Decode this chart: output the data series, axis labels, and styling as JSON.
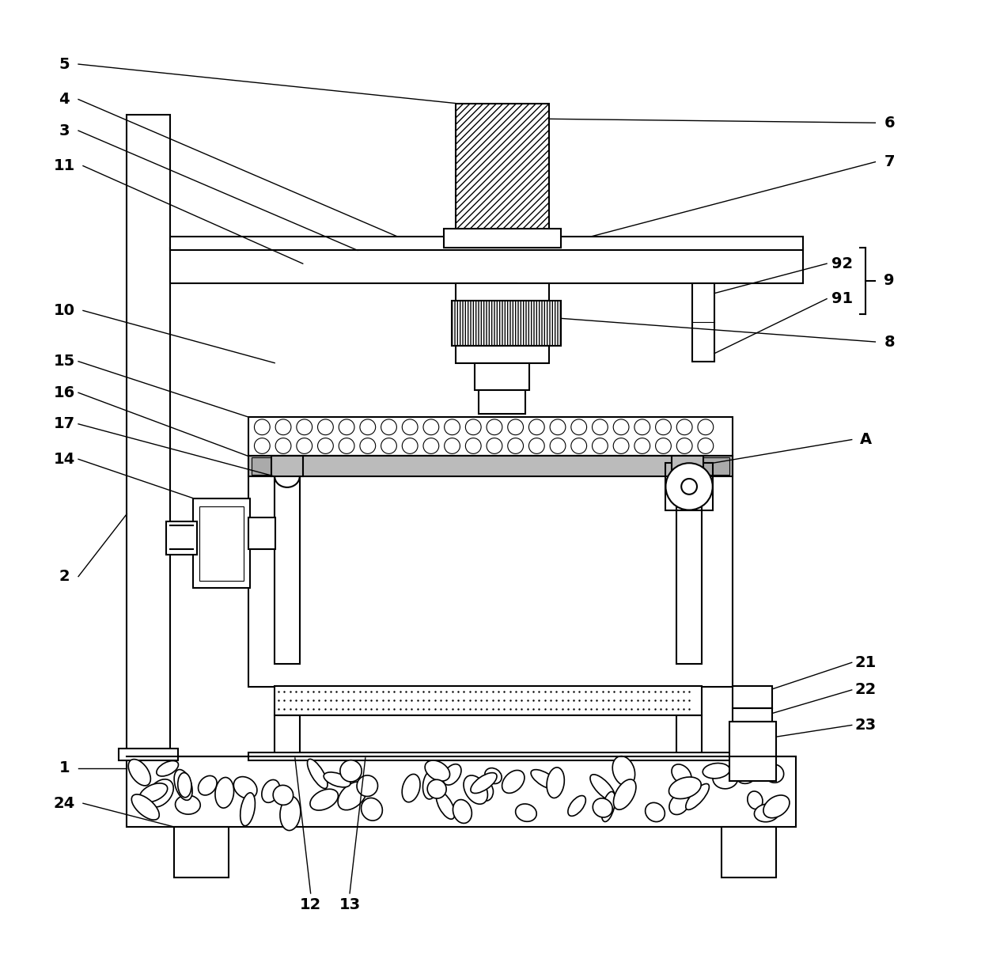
{
  "bg_color": "#ffffff",
  "lw": 1.5,
  "thin_lw": 0.8,
  "fig_width": 12.4,
  "fig_height": 12.12,
  "dpi": 100
}
